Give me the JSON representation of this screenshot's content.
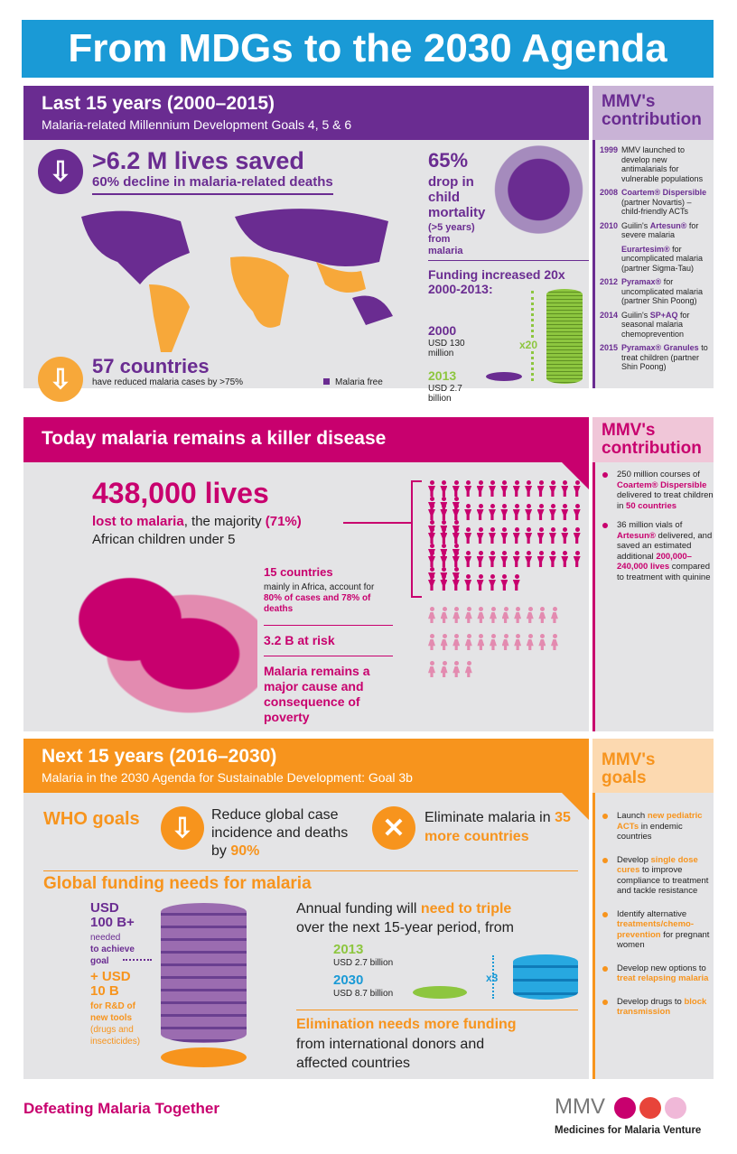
{
  "title": "From MDGs to the 2030 Agenda",
  "colors": {
    "blue": "#1a9ad6",
    "purple": "#6a2c91",
    "magenta": "#c8006e",
    "orange": "#f7941d",
    "green": "#8dc63f",
    "gray": "#e4e4e6"
  },
  "s1": {
    "title": "Last 15 years (2000–2015)",
    "subtitle": "Malaria-related Millennium Development Goals 4, 5 & 6",
    "lives": "&gt;6.2 M lives saved",
    "lives_sub": "60% decline in malaria-related deaths",
    "countries": "57 countries",
    "countries_sub": "have reduced malaria cases by >75%",
    "legend": "Malaria free",
    "child_pct": "65%",
    "child_text": "drop in child mortality",
    "child_sub": "(>5 years) from malaria",
    "funding_title": "Funding increased 20x 2000-2013:",
    "y2000": "2000",
    "v2000": "USD 130 million",
    "y2013": "2013",
    "v2013": "USD 2.7 billion",
    "mult": "x20",
    "mmv_head": "MMV's contribution",
    "timeline": [
      {
        "year": "1999",
        "text": "MMV launched to develop new antimalarials for vulnerable populations"
      },
      {
        "year": "2008",
        "bold": "Coartem® Dispersible",
        "text": "(partner Novartis) – child-friendly ACTs"
      },
      {
        "year": "2010",
        "pre": "Guilin's ",
        "bold": "Artesun®",
        "text": "for severe malaria"
      },
      {
        "year": "",
        "bold": "Eurartesim®",
        "text": "for uncomplicated malaria (partner Sigma-Tau)"
      },
      {
        "year": "2012",
        "bold": "Pyramax®",
        "text": "for uncomplicated malaria (partner Shin Poong)"
      },
      {
        "year": "2014",
        "pre": "Guilin's ",
        "bold": "SP+AQ",
        "text": "for seasonal malaria chemoprevention"
      },
      {
        "year": "2015",
        "bold": "Pyramax® Granules",
        "text": "to treat children (partner Shin Poong)"
      }
    ]
  },
  "s2": {
    "title": "Today malaria remains a killer disease",
    "lives": "438,000 lives",
    "lost": "lost to malaria",
    "majority": ", the majority ",
    "pct": "(71%)",
    "africa": "African children under 5",
    "c15": "15 countries",
    "c15_sub": "mainly in Africa, account for",
    "c15_b": "80% of cases and 78% of deaths",
    "risk": "3.2 B at risk",
    "poverty": "Malaria remains a major cause and consequence of poverty",
    "mmv_head": "MMV's contribution",
    "bullets": [
      {
        "a": "250 million courses of ",
        "b": "Coartem® Dispersible",
        "c": " delivered to treat children in ",
        "d": "50 countries"
      },
      {
        "a": "36 million vials of ",
        "b": "Artesun®",
        "c": " delivered, and saved an estimated additional ",
        "d": "200,000–240,000 lives",
        "e": " compared to treatment with quinine"
      }
    ]
  },
  "s3": {
    "title": "Next 15 years (2016–2030)",
    "subtitle": "Malaria in the 2030 Agenda for Sustainable Development: Goal 3b",
    "who": "WHO goals",
    "goal1": "Reduce global case incidence and deaths by ",
    "goal1_b": "90%",
    "goal2": "Eliminate malaria in ",
    "goal2_b": "35 more countries",
    "funding_title": "Global funding needs for malaria",
    "usd100": "USD 100 B+",
    "needed": "needed",
    "achieve": "to achieve goal",
    "usd10": "+ USD 10 B",
    "rd": "for R&D of new tools",
    "rd_sub": "(drugs and insecticides)",
    "annual": "Annual funding will ",
    "annual_b": "need to triple",
    "annual_c": " over the next 15-year period, from",
    "y2013": "2013",
    "v2013": "USD 2.7 billion",
    "y2030": "2030",
    "v2030": "USD 8.7 billion",
    "mult": "x3",
    "elim": "Elimination needs more funding",
    "elim_sub": "from international donors and affected countries",
    "mmv_head": "MMV's goals",
    "goals": [
      {
        "a": "Launch ",
        "b": "new pediatric ACTs",
        "c": " in endemic countries"
      },
      {
        "a": "Develop ",
        "b": "single dose cures",
        "c": " to improve compliance to treatment and tackle resistance"
      },
      {
        "a": "Identify alternative ",
        "b": "treatments/chemo-prevention",
        "c": " for pregnant women"
      },
      {
        "a": "Develop new options to ",
        "b": "treat relapsing malaria",
        "c": ""
      },
      {
        "a": "Develop drugs to ",
        "b": "block transmission",
        "c": ""
      }
    ]
  },
  "footer": {
    "tagline": "Defeating Malaria Together",
    "logo": "MMV",
    "org": "Medicines for Malaria Venture"
  }
}
